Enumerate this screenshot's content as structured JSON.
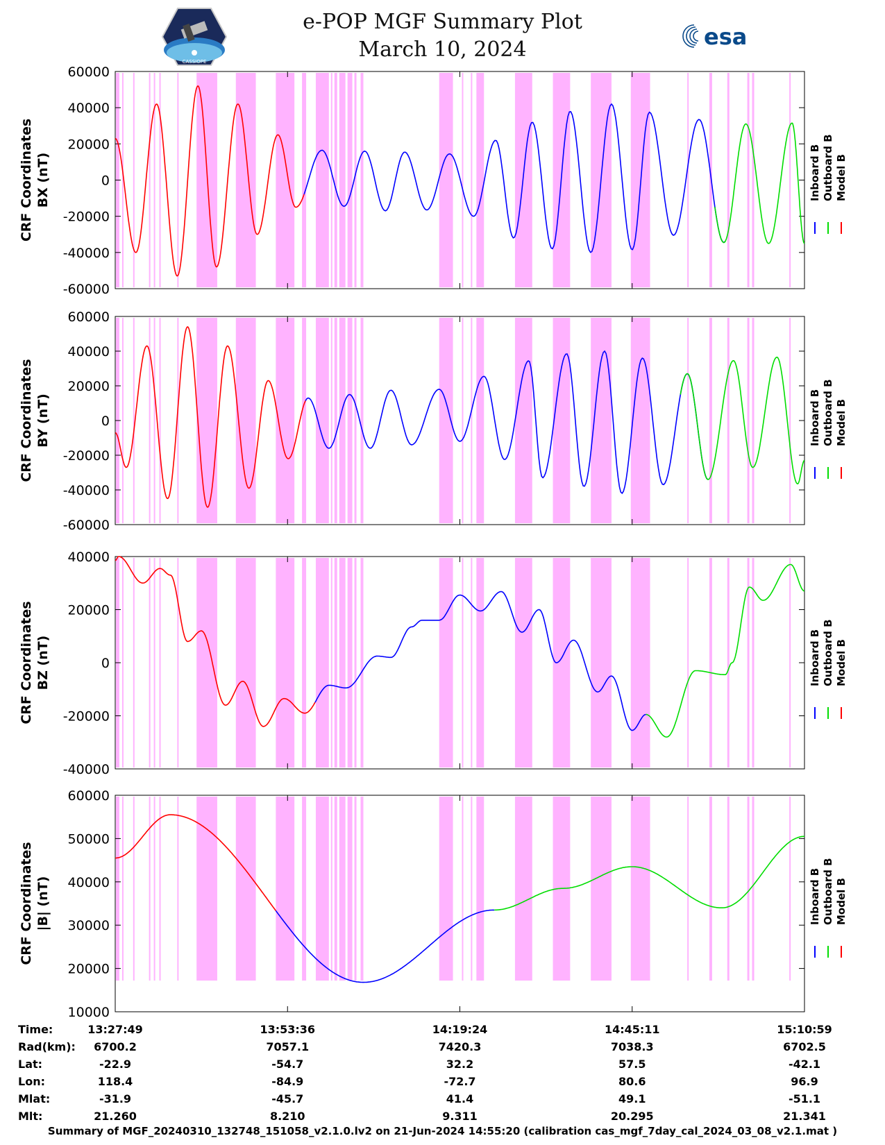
{
  "header": {
    "title": "e-POP MGF Summary Plot",
    "date": "March 10, 2024",
    "esa_logo_text": "esa",
    "cassiope_logo_text": "CASSIOPE"
  },
  "legend": {
    "items": [
      {
        "label": "Inboard B",
        "color": "#0000ff"
      },
      {
        "label": "Outboard B",
        "color": "#00dd00"
      },
      {
        "label": "Model B",
        "color": "#ff0000"
      }
    ]
  },
  "chart_data": [
    {
      "type": "line",
      "id": "bx",
      "ylabel_line1": "CRF Coordinates",
      "ylabel_line2": "BX (nT)",
      "ylim": [
        -60000,
        60000
      ],
      "yticks": [
        -60000,
        -40000,
        -20000,
        0,
        20000,
        40000,
        60000
      ],
      "ytick_labels": [
        "-60000",
        "-40000",
        "-20000",
        "0",
        "20000",
        "40000",
        "60000"
      ],
      "extrema": [
        [
          0.0,
          23000
        ],
        [
          0.03,
          -40000
        ],
        [
          0.06,
          42000
        ],
        [
          0.09,
          -53000
        ],
        [
          0.12,
          52000
        ],
        [
          0.147,
          -48000
        ],
        [
          0.178,
          42000
        ],
        [
          0.206,
          -30000
        ],
        [
          0.236,
          25000
        ],
        [
          0.262,
          -15000
        ],
        [
          0.3,
          16500
        ],
        [
          0.332,
          -14500
        ],
        [
          0.362,
          16000
        ],
        [
          0.392,
          -17000
        ],
        [
          0.42,
          15500
        ],
        [
          0.452,
          -16500
        ],
        [
          0.485,
          14500
        ],
        [
          0.52,
          -20000
        ],
        [
          0.552,
          22000
        ],
        [
          0.578,
          -32000
        ],
        [
          0.605,
          32000
        ],
        [
          0.634,
          -38000
        ],
        [
          0.66,
          38000
        ],
        [
          0.69,
          -40000
        ],
        [
          0.72,
          42000
        ],
        [
          0.75,
          -38500
        ],
        [
          0.775,
          37500
        ],
        [
          0.81,
          -30500
        ],
        [
          0.847,
          33500
        ],
        [
          0.883,
          -34500
        ],
        [
          0.915,
          31000
        ],
        [
          0.948,
          -35000
        ],
        [
          0.982,
          31500
        ],
        [
          1.0,
          -35000
        ]
      ],
      "series": [
        {
          "name": "Inboard B",
          "color": "#0000ff",
          "x_range": [
            0.274,
            0.885
          ]
        },
        {
          "name": "Outboard B",
          "color": "#00dd00",
          "x_range": [
            0.87,
            1.0
          ]
        },
        {
          "name": "Model B",
          "color": "#ff0000",
          "x_range": [
            0.0,
            0.274
          ]
        }
      ]
    },
    {
      "type": "line",
      "id": "by",
      "ylabel_line1": "CRF Coordinates",
      "ylabel_line2": "BY (nT)",
      "ylim": [
        -60000,
        60000
      ],
      "yticks": [
        -60000,
        -40000,
        -20000,
        0,
        20000,
        40000,
        60000
      ],
      "ytick_labels": [
        "-60000",
        "-40000",
        "-20000",
        "0",
        "20000",
        "40000",
        "60000"
      ],
      "extrema": [
        [
          0.0,
          -7000
        ],
        [
          0.016,
          -27000
        ],
        [
          0.046,
          43000
        ],
        [
          0.076,
          -45000
        ],
        [
          0.105,
          54000
        ],
        [
          0.134,
          -50000
        ],
        [
          0.163,
          43000
        ],
        [
          0.194,
          -39000
        ],
        [
          0.222,
          23000
        ],
        [
          0.251,
          -22000
        ],
        [
          0.28,
          13000
        ],
        [
          0.31,
          -16000
        ],
        [
          0.34,
          15000
        ],
        [
          0.37,
          -16000
        ],
        [
          0.4,
          17500
        ],
        [
          0.43,
          -14000
        ],
        [
          0.47,
          18000
        ],
        [
          0.5,
          -12000
        ],
        [
          0.535,
          25500
        ],
        [
          0.565,
          -22500
        ],
        [
          0.6,
          34500
        ],
        [
          0.62,
          -33000
        ],
        [
          0.655,
          38500
        ],
        [
          0.68,
          -38000
        ],
        [
          0.71,
          40000
        ],
        [
          0.735,
          -42000
        ],
        [
          0.765,
          36000
        ],
        [
          0.795,
          -37000
        ],
        [
          0.83,
          27000
        ],
        [
          0.86,
          -34000
        ],
        [
          0.897,
          34500
        ],
        [
          0.925,
          -27000
        ],
        [
          0.96,
          36500
        ],
        [
          0.99,
          -36500
        ],
        [
          1.0,
          -23000
        ]
      ],
      "series": [
        {
          "name": "Inboard B",
          "color": "#0000ff",
          "x_range": [
            0.276,
            0.86
          ]
        },
        {
          "name": "Outboard B",
          "color": "#00dd00",
          "x_range": [
            0.82,
            1.0
          ]
        },
        {
          "name": "Model B",
          "color": "#ff0000",
          "x_range": [
            0.0,
            0.276
          ]
        }
      ]
    },
    {
      "type": "line",
      "id": "bz",
      "ylabel_line1": "CRF Coordinates",
      "ylabel_line2": "BZ (nT)",
      "ylim": [
        -40000,
        40000
      ],
      "yticks": [
        -40000,
        -20000,
        0,
        20000,
        40000
      ],
      "ytick_labels": [
        "-40000",
        "-20000",
        "0",
        "20000",
        "40000"
      ],
      "extrema": [
        [
          0.0,
          38500
        ],
        [
          0.005,
          40000
        ],
        [
          0.04,
          30000
        ],
        [
          0.065,
          35500
        ],
        [
          0.08,
          33000
        ],
        [
          0.105,
          8000
        ],
        [
          0.125,
          12000
        ],
        [
          0.16,
          -16000
        ],
        [
          0.185,
          -7000
        ],
        [
          0.215,
          -24000
        ],
        [
          0.245,
          -13500
        ],
        [
          0.275,
          -19000
        ],
        [
          0.31,
          -8500
        ],
        [
          0.335,
          -9500
        ],
        [
          0.38,
          2500
        ],
        [
          0.4,
          2000
        ],
        [
          0.43,
          13500
        ],
        [
          0.445,
          16000
        ],
        [
          0.47,
          16000
        ],
        [
          0.5,
          25500
        ],
        [
          0.53,
          19500
        ],
        [
          0.56,
          26800
        ],
        [
          0.59,
          11500
        ],
        [
          0.615,
          20000
        ],
        [
          0.64,
          0
        ],
        [
          0.665,
          8500
        ],
        [
          0.7,
          -11000
        ],
        [
          0.72,
          -5000
        ],
        [
          0.75,
          -25500
        ],
        [
          0.77,
          -19500
        ],
        [
          0.8,
          -28000
        ],
        [
          0.842,
          -3000
        ],
        [
          0.885,
          -4500
        ],
        [
          0.895,
          0
        ],
        [
          0.92,
          28500
        ],
        [
          0.94,
          23500
        ],
        [
          0.98,
          37000
        ],
        [
          1.0,
          27000
        ]
      ],
      "series": [
        {
          "name": "Inboard B",
          "color": "#0000ff",
          "x_range": [
            0.29,
            0.77
          ]
        },
        {
          "name": "Outboard B",
          "color": "#00dd00",
          "x_range": [
            0.77,
            1.0
          ]
        },
        {
          "name": "Model B",
          "color": "#ff0000",
          "x_range": [
            0.0,
            0.29
          ]
        }
      ]
    },
    {
      "type": "line",
      "id": "bmag",
      "ylabel_line1": "CRF Coordinates",
      "ylabel_line2": "|B| (nT)",
      "ylim": [
        10000,
        60000
      ],
      "yticks": [
        10000,
        20000,
        30000,
        40000,
        50000,
        60000
      ],
      "ytick_labels": [
        "10000",
        "20000",
        "30000",
        "40000",
        "50000",
        "60000"
      ],
      "extrema": [
        [
          0.0,
          45500
        ],
        [
          0.08,
          55500
        ],
        [
          0.36,
          16800
        ],
        [
          0.55,
          33500
        ],
        [
          0.65,
          38500
        ],
        [
          0.75,
          43500
        ],
        [
          0.88,
          34000
        ],
        [
          1.0,
          50500
        ]
      ],
      "series": [
        {
          "name": "Inboard B",
          "color": "#0000ff",
          "x_range": [
            0.233,
            0.55
          ]
        },
        {
          "name": "Outboard B",
          "color": "#00dd00",
          "x_range": [
            0.55,
            1.0
          ]
        },
        {
          "name": "Model B",
          "color": "#ff0000",
          "x_range": [
            0.0,
            0.233
          ]
        }
      ]
    }
  ],
  "shaded_intervals": [
    [
      0.001,
      0.006
    ],
    [
      0.01,
      0.012
    ],
    [
      0.026,
      0.028
    ],
    [
      0.049,
      0.051
    ],
    [
      0.056,
      0.058
    ],
    [
      0.064,
      0.066
    ],
    [
      0.09,
      0.092
    ],
    [
      0.118,
      0.148
    ],
    [
      0.175,
      0.204
    ],
    [
      0.233,
      0.26
    ],
    [
      0.271,
      0.277
    ],
    [
      0.291,
      0.31
    ],
    [
      0.313,
      0.315
    ],
    [
      0.318,
      0.322
    ],
    [
      0.325,
      0.334
    ],
    [
      0.337,
      0.344
    ],
    [
      0.347,
      0.35
    ],
    [
      0.356,
      0.36
    ],
    [
      0.47,
      0.49
    ],
    [
      0.503,
      0.505
    ],
    [
      0.516,
      0.518
    ],
    [
      0.524,
      0.535
    ],
    [
      0.58,
      0.605
    ],
    [
      0.635,
      0.66
    ],
    [
      0.69,
      0.72
    ],
    [
      0.748,
      0.776
    ],
    [
      0.83,
      0.832
    ],
    [
      0.862,
      0.866
    ],
    [
      0.888,
      0.891
    ],
    [
      0.917,
      0.92
    ],
    [
      0.924,
      0.927
    ],
    [
      0.978,
      0.98
    ]
  ],
  "time_axis": {
    "ticks": [
      0.0,
      0.25,
      0.5,
      0.75,
      1.0
    ],
    "rows": [
      {
        "label": "Time:",
        "values": [
          "13:27:49",
          "13:53:36",
          "14:19:24",
          "14:45:11",
          "15:10:59"
        ]
      },
      {
        "label": "Rad(km):",
        "values": [
          "6700.2",
          "7057.1",
          "7420.3",
          "7038.3",
          "6702.5"
        ]
      },
      {
        "label": "Lat:",
        "values": [
          "-22.9",
          "-54.7",
          "32.2",
          "57.5",
          "-42.1"
        ]
      },
      {
        "label": "Lon:",
        "values": [
          "118.4",
          "-84.9",
          "-72.7",
          "80.6",
          "96.9"
        ]
      },
      {
        "label": "Mlat:",
        "values": [
          "-31.9",
          "-45.7",
          "41.4",
          "49.1",
          "-51.1"
        ]
      },
      {
        "label": "Mlt:",
        "values": [
          "21.260",
          "8.210",
          "9.311",
          "20.295",
          "21.341"
        ]
      }
    ]
  },
  "footer": {
    "summary": "Summary of MGF_20240310_132748_151058_v2.1.0.lv2 on 21-Jun-2024 14:55:20 (calibration cas_mgf_7day_cal_2024_03_08_v2.1.mat )"
  }
}
